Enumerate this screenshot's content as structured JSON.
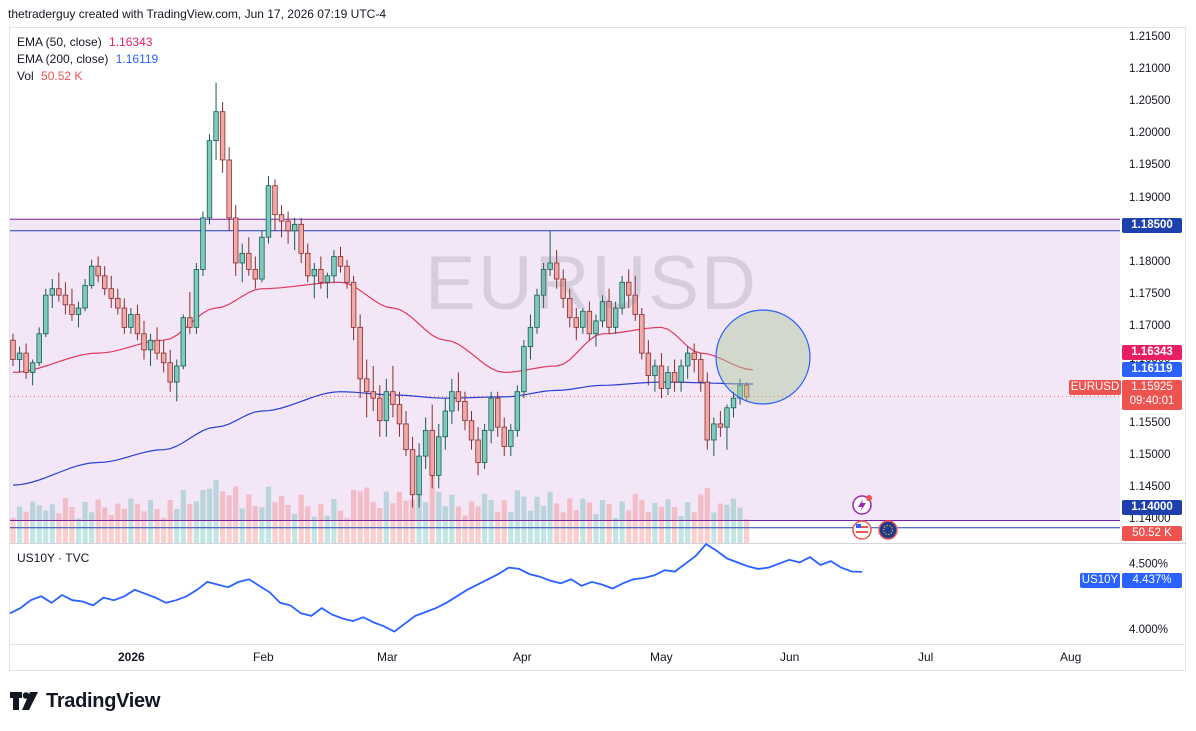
{
  "header": {
    "credit": "thetraderguy created with TradingView.com, Jun 17, 2026 07:19 UTC-4"
  },
  "symbol_watermark": "EURUSD",
  "legend": {
    "ema50": {
      "label": "EMA (50, close)",
      "value": "1.16343",
      "color": "#e91e63"
    },
    "ema200": {
      "label": "EMA (200, close)",
      "value": "1.16119",
      "color": "#2962ff"
    },
    "vol": {
      "label": "Vol",
      "value": "50.52 K",
      "color": "#ef5350"
    }
  },
  "price_tags": {
    "res": "1.18500",
    "ema50": "1.16343",
    "ema200": "1.16119",
    "sym": "EURUSD",
    "last": "1.15925",
    "countdown": "09:40:01",
    "sup": "1.14000",
    "vol": "50.52 K",
    "us10y_sym": "US10Y",
    "us10y_val": "4.437%"
  },
  "sub_pane": {
    "label": "US10Y · TVC"
  },
  "branding": {
    "logo": "TradingView"
  },
  "colors": {
    "up": "#26a69a",
    "down": "#ef5350",
    "range_fill": "#f3e6f6",
    "level_line": "#7b1fa2",
    "us10y": "#2962ff"
  },
  "chart_data": {
    "type": "candlestick",
    "symbol": "EURUSD",
    "y_axis_ticks": [
      "1.21500",
      "1.21000",
      "1.20500",
      "1.20000",
      "1.19500",
      "1.19000",
      "1.18500",
      "1.18000",
      "1.17500",
      "1.17000",
      "1.16500",
      "1.16000",
      "1.15500",
      "1.15000",
      "1.14500",
      "1.14000"
    ],
    "y_range": [
      1.1365,
      1.2165
    ],
    "x_axis_ticks": [
      "2026",
      "Feb",
      "Mar",
      "Apr",
      "May",
      "Jun",
      "Jul",
      "Aug"
    ],
    "horizontal_levels": [
      {
        "name": "resistance",
        "value": 1.185
      },
      {
        "name": "support",
        "value": 1.14
      }
    ],
    "ohlc": [
      [
        1.168,
        1.169,
        1.164,
        1.165
      ],
      [
        1.165,
        1.167,
        1.163,
        1.166
      ],
      [
        1.166,
        1.1675,
        1.162,
        1.163
      ],
      [
        1.163,
        1.165,
        1.161,
        1.1645
      ],
      [
        1.1645,
        1.17,
        1.164,
        1.169
      ],
      [
        1.169,
        1.176,
        1.1685,
        1.175
      ],
      [
        1.175,
        1.1775,
        1.173,
        1.176
      ],
      [
        1.176,
        1.1785,
        1.174,
        1.175
      ],
      [
        1.175,
        1.177,
        1.172,
        1.1735
      ],
      [
        1.1735,
        1.176,
        1.171,
        1.172
      ],
      [
        1.172,
        1.174,
        1.17,
        1.173
      ],
      [
        1.173,
        1.1775,
        1.1725,
        1.1765
      ],
      [
        1.1765,
        1.1805,
        1.176,
        1.1795
      ],
      [
        1.1795,
        1.181,
        1.177,
        1.178
      ],
      [
        1.178,
        1.1795,
        1.175,
        1.176
      ],
      [
        1.176,
        1.178,
        1.173,
        1.1745
      ],
      [
        1.1745,
        1.176,
        1.172,
        1.173
      ],
      [
        1.173,
        1.1745,
        1.169,
        1.17
      ],
      [
        1.17,
        1.173,
        1.169,
        1.172
      ],
      [
        1.172,
        1.1735,
        1.168,
        1.169
      ],
      [
        1.169,
        1.171,
        1.165,
        1.1665
      ],
      [
        1.1665,
        1.169,
        1.164,
        1.168
      ],
      [
        1.168,
        1.17,
        1.165,
        1.166
      ],
      [
        1.166,
        1.168,
        1.163,
        1.1645
      ],
      [
        1.1645,
        1.1665,
        1.16,
        1.1615
      ],
      [
        1.1615,
        1.165,
        1.1585,
        1.164
      ],
      [
        1.164,
        1.172,
        1.1635,
        1.1715
      ],
      [
        1.1715,
        1.1755,
        1.169,
        1.17
      ],
      [
        1.17,
        1.18,
        1.169,
        1.179
      ],
      [
        1.179,
        1.188,
        1.178,
        1.187
      ],
      [
        1.187,
        1.2,
        1.186,
        1.199
      ],
      [
        1.199,
        1.208,
        1.196,
        1.2035
      ],
      [
        1.2035,
        1.205,
        1.194,
        1.196
      ],
      [
        1.196,
        1.198,
        1.185,
        1.187
      ],
      [
        1.187,
        1.189,
        1.178,
        1.18
      ],
      [
        1.18,
        1.183,
        1.177,
        1.1815
      ],
      [
        1.1815,
        1.184,
        1.178,
        1.179
      ],
      [
        1.179,
        1.181,
        1.176,
        1.1775
      ],
      [
        1.1775,
        1.185,
        1.177,
        1.184
      ],
      [
        1.184,
        1.1935,
        1.183,
        1.192
      ],
      [
        1.192,
        1.193,
        1.185,
        1.1875
      ],
      [
        1.1875,
        1.189,
        1.184,
        1.1865
      ],
      [
        1.1865,
        1.188,
        1.183,
        1.185
      ],
      [
        1.185,
        1.187,
        1.182,
        1.186
      ],
      [
        1.186,
        1.187,
        1.18,
        1.1815
      ],
      [
        1.1815,
        1.183,
        1.177,
        1.178
      ],
      [
        1.178,
        1.18,
        1.1745,
        1.179
      ],
      [
        1.179,
        1.181,
        1.176,
        1.177
      ],
      [
        1.177,
        1.1785,
        1.1745,
        1.178
      ],
      [
        1.178,
        1.182,
        1.177,
        1.181
      ],
      [
        1.181,
        1.1825,
        1.1785,
        1.1795
      ],
      [
        1.1795,
        1.1805,
        1.176,
        1.177
      ],
      [
        1.177,
        1.178,
        1.168,
        1.17
      ],
      [
        1.17,
        1.172,
        1.159,
        1.162
      ],
      [
        1.162,
        1.165,
        1.156,
        1.16
      ],
      [
        1.16,
        1.164,
        1.157,
        1.159
      ],
      [
        1.159,
        1.161,
        1.153,
        1.1555
      ],
      [
        1.1555,
        1.162,
        1.153,
        1.16
      ],
      [
        1.16,
        1.164,
        1.156,
        1.158
      ],
      [
        1.158,
        1.16,
        1.153,
        1.155
      ],
      [
        1.155,
        1.157,
        1.15,
        1.151
      ],
      [
        1.151,
        1.153,
        1.142,
        1.144
      ],
      [
        1.144,
        1.152,
        1.142,
        1.15
      ],
      [
        1.15,
        1.156,
        1.148,
        1.154
      ],
      [
        1.154,
        1.158,
        1.145,
        1.147
      ],
      [
        1.147,
        1.155,
        1.145,
        1.153
      ],
      [
        1.153,
        1.159,
        1.151,
        1.157
      ],
      [
        1.157,
        1.162,
        1.155,
        1.16
      ],
      [
        1.16,
        1.163,
        1.157,
        1.1585
      ],
      [
        1.1585,
        1.16,
        1.154,
        1.1555
      ],
      [
        1.1555,
        1.157,
        1.151,
        1.1525
      ],
      [
        1.1525,
        1.1545,
        1.147,
        1.149
      ],
      [
        1.149,
        1.155,
        1.148,
        1.154
      ],
      [
        1.154,
        1.16,
        1.152,
        1.159
      ],
      [
        1.159,
        1.16,
        1.153,
        1.1545
      ],
      [
        1.1545,
        1.156,
        1.15,
        1.1515
      ],
      [
        1.1515,
        1.155,
        1.15,
        1.154
      ],
      [
        1.154,
        1.161,
        1.153,
        1.16
      ],
      [
        1.16,
        1.168,
        1.159,
        1.167
      ],
      [
        1.167,
        1.172,
        1.165,
        1.17
      ],
      [
        1.17,
        1.176,
        1.169,
        1.175
      ],
      [
        1.175,
        1.18,
        1.173,
        1.179
      ],
      [
        1.179,
        1.185,
        1.178,
        1.18
      ],
      [
        1.18,
        1.182,
        1.176,
        1.1775
      ],
      [
        1.1775,
        1.179,
        1.173,
        1.1745
      ],
      [
        1.1745,
        1.176,
        1.17,
        1.1715
      ],
      [
        1.1715,
        1.173,
        1.168,
        1.17
      ],
      [
        1.17,
        1.173,
        1.169,
        1.1725
      ],
      [
        1.1725,
        1.174,
        1.168,
        1.169
      ],
      [
        1.169,
        1.172,
        1.167,
        1.171
      ],
      [
        1.171,
        1.175,
        1.17,
        1.174
      ],
      [
        1.174,
        1.176,
        1.169,
        1.17
      ],
      [
        1.17,
        1.174,
        1.169,
        1.173
      ],
      [
        1.173,
        1.178,
        1.172,
        1.177
      ],
      [
        1.177,
        1.179,
        1.173,
        1.175
      ],
      [
        1.175,
        1.178,
        1.171,
        1.172
      ],
      [
        1.172,
        1.173,
        1.165,
        1.166
      ],
      [
        1.166,
        1.168,
        1.161,
        1.1625
      ],
      [
        1.1625,
        1.165,
        1.16,
        1.164
      ],
      [
        1.164,
        1.166,
        1.159,
        1.1605
      ],
      [
        1.1605,
        1.164,
        1.1595,
        1.163
      ],
      [
        1.163,
        1.165,
        1.16,
        1.1615
      ],
      [
        1.1615,
        1.165,
        1.16,
        1.164
      ],
      [
        1.164,
        1.167,
        1.162,
        1.166
      ],
      [
        1.166,
        1.1675,
        1.163,
        1.165
      ],
      [
        1.165,
        1.166,
        1.16,
        1.1615
      ],
      [
        1.1615,
        1.163,
        1.151,
        1.1525
      ],
      [
        1.1525,
        1.156,
        1.15,
        1.155
      ],
      [
        1.155,
        1.157,
        1.153,
        1.1545
      ],
      [
        1.1545,
        1.158,
        1.151,
        1.1575
      ],
      [
        1.1575,
        1.16,
        1.156,
        1.159
      ],
      [
        1.159,
        1.162,
        1.158,
        1.161
      ],
      [
        1.161,
        1.1615,
        1.1585,
        1.1592
      ]
    ],
    "ema50_approx": [
      [
        0,
        1.163
      ],
      [
        13,
        1.166
      ],
      [
        23,
        1.168
      ],
      [
        31,
        1.173
      ],
      [
        38,
        1.176
      ],
      [
        50,
        1.177
      ],
      [
        58,
        1.173
      ],
      [
        66,
        1.168
      ],
      [
        75,
        1.163
      ],
      [
        83,
        1.164
      ],
      [
        90,
        1.169
      ],
      [
        99,
        1.17
      ],
      [
        105,
        1.166
      ],
      [
        113,
        1.1634
      ]
    ],
    "ema200_approx": [
      [
        0,
        1.1455
      ],
      [
        13,
        1.149
      ],
      [
        23,
        1.151
      ],
      [
        31,
        1.1545
      ],
      [
        38,
        1.157
      ],
      [
        50,
        1.16
      ],
      [
        58,
        1.1595
      ],
      [
        66,
        1.159
      ],
      [
        75,
        1.1592
      ],
      [
        83,
        1.1602
      ],
      [
        90,
        1.161
      ],
      [
        99,
        1.1615
      ],
      [
        113,
        1.1612
      ]
    ],
    "us10y": {
      "y_axis_ticks": [
        "4.500%",
        "4.000%"
      ],
      "y_range": [
        3.9,
        4.62
      ],
      "values": [
        4.12,
        4.16,
        4.22,
        4.25,
        4.2,
        4.26,
        4.22,
        4.21,
        4.18,
        4.24,
        4.22,
        4.25,
        4.3,
        4.27,
        4.24,
        4.2,
        4.22,
        4.25,
        4.3,
        4.36,
        4.34,
        4.32,
        4.36,
        4.38,
        4.33,
        4.28,
        4.2,
        4.18,
        4.12,
        4.1,
        4.16,
        4.11,
        4.08,
        4.06,
        4.09,
        4.05,
        4.02,
        3.98,
        4.04,
        4.1,
        4.13,
        4.16,
        4.2,
        4.25,
        4.3,
        4.34,
        4.38,
        4.42,
        4.47,
        4.46,
        4.42,
        4.4,
        4.37,
        4.35,
        4.38,
        4.33,
        4.36,
        4.34,
        4.31,
        4.35,
        4.38,
        4.39,
        4.41,
        4.45,
        4.44,
        4.5,
        4.56,
        4.65,
        4.6,
        4.54,
        4.51,
        4.48,
        4.46,
        4.47,
        4.5,
        4.53,
        4.51,
        4.55,
        4.49,
        4.52,
        4.47,
        4.44,
        4.437
      ]
    }
  }
}
